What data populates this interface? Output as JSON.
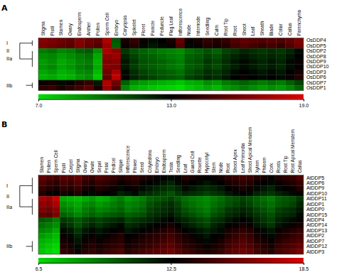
{
  "chart_data": [
    {
      "type": "heatmap",
      "title": "A",
      "x": [
        "Stigma",
        "Pistil",
        "Stamen",
        "Ovary",
        "Endosperm",
        "Anther",
        "Pollen",
        "Sperm Cell",
        "Embryo",
        "Caryopsis",
        "Spikelet",
        "Floret",
        "Panicle",
        "Peduncle",
        "Flag Leaf",
        "Inflorescence",
        "Node",
        "Internode",
        "Seedling",
        "Culm",
        "Root Tip",
        "Root",
        "Shoot",
        "Leaf",
        "Sheath",
        "Blade",
        "Collar",
        "Callus",
        "Parenchyma"
      ],
      "y": [
        "OsDDP4",
        "OsDDP5",
        "OsDDP2",
        "OsDDP8",
        "OsDDP9",
        "OsDDP10",
        "OsDDP3",
        "OsDDP6",
        "OsDDP7",
        "OsDDP1"
      ],
      "zlim": [
        0,
        1
      ],
      "colors": [
        "#00dd00",
        "#000000",
        "#dd0000"
      ],
      "colorbar": {
        "lim": [
          7.0,
          19.0
        ],
        "ticks": [
          {
            "value": 7.0,
            "label": "7.0"
          },
          {
            "value": 13.0,
            "label": "13.0"
          },
          {
            "value": 19.0,
            "label": "19.0"
          }
        ]
      },
      "clades": [
        {
          "text": "I",
          "rows": [
            "OsDDP4",
            "OsDDP5"
          ]
        },
        {
          "text": "IIa",
          "rows": [
            "OsDDP2",
            "OsDDP10"
          ]
        },
        {
          "text": "II",
          "joins": [
            "I",
            "IIa"
          ]
        },
        {
          "text": "IIb",
          "rows": [
            "OsDDP7",
            "OsDDP1"
          ]
        }
      ],
      "values": [
        [
          0.8,
          0.78,
          0.75,
          0.72,
          0.8,
          0.75,
          0.72,
          0.9,
          0.3,
          0.55,
          0.62,
          0.52,
          0.48,
          0.5,
          0.55,
          0.72,
          0.52,
          0.55,
          0.62,
          0.58,
          0.62,
          0.68,
          0.72,
          0.7,
          0.68,
          0.7,
          0.68,
          0.72,
          0.78
        ],
        [
          0.78,
          0.75,
          0.72,
          0.7,
          0.78,
          0.72,
          0.68,
          0.85,
          0.28,
          0.52,
          0.58,
          0.48,
          0.45,
          0.48,
          0.52,
          0.68,
          0.48,
          0.52,
          0.58,
          0.55,
          0.58,
          0.65,
          0.68,
          0.65,
          0.62,
          0.65,
          0.62,
          0.68,
          0.75
        ],
        [
          0.22,
          0.25,
          0.2,
          0.22,
          0.28,
          0.3,
          0.18,
          0.88,
          0.82,
          0.38,
          0.32,
          0.28,
          0.25,
          0.22,
          0.2,
          0.18,
          0.25,
          0.28,
          0.32,
          0.28,
          0.35,
          0.38,
          0.42,
          0.4,
          0.38,
          0.4,
          0.38,
          0.42,
          0.48
        ],
        [
          0.18,
          0.2,
          0.15,
          0.18,
          0.22,
          0.25,
          0.12,
          0.82,
          0.85,
          0.42,
          0.35,
          0.3,
          0.28,
          0.25,
          0.22,
          0.2,
          0.28,
          0.3,
          0.35,
          0.32,
          0.38,
          0.42,
          0.45,
          0.42,
          0.4,
          0.42,
          0.4,
          0.45,
          0.5
        ],
        [
          0.15,
          0.18,
          0.12,
          0.15,
          0.2,
          0.22,
          0.1,
          0.78,
          0.8,
          0.45,
          0.38,
          0.32,
          0.3,
          0.28,
          0.25,
          0.22,
          0.3,
          0.32,
          0.38,
          0.35,
          0.4,
          0.45,
          0.48,
          0.45,
          0.42,
          0.45,
          0.42,
          0.48,
          0.52
        ],
        [
          0.16,
          0.19,
          0.13,
          0.16,
          0.21,
          0.24,
          0.11,
          0.8,
          0.78,
          0.44,
          0.36,
          0.31,
          0.29,
          0.26,
          0.23,
          0.21,
          0.29,
          0.31,
          0.36,
          0.33,
          0.39,
          0.43,
          0.47,
          0.44,
          0.41,
          0.44,
          0.41,
          0.47,
          0.51
        ],
        [
          0.12,
          0.15,
          0.1,
          0.12,
          0.18,
          0.2,
          0.08,
          0.75,
          0.88,
          0.48,
          0.4,
          0.35,
          0.32,
          0.3,
          0.28,
          0.25,
          0.32,
          0.35,
          0.4,
          0.38,
          0.42,
          0.48,
          0.5,
          0.48,
          0.45,
          0.48,
          0.45,
          0.5,
          0.55
        ],
        [
          0.1,
          0.12,
          0.08,
          0.1,
          0.15,
          0.18,
          0.05,
          0.72,
          0.92,
          0.52,
          0.42,
          0.38,
          0.35,
          0.32,
          0.3,
          0.28,
          0.35,
          0.38,
          0.42,
          0.4,
          0.45,
          0.5,
          0.52,
          0.5,
          0.48,
          0.5,
          0.48,
          0.52,
          0.58
        ],
        [
          0.52,
          0.55,
          0.48,
          0.52,
          0.58,
          0.62,
          0.45,
          0.9,
          0.75,
          0.28,
          0.18,
          0.15,
          0.12,
          0.1,
          0.08,
          0.05,
          0.1,
          0.12,
          0.18,
          0.15,
          0.22,
          0.25,
          0.28,
          0.25,
          0.22,
          0.25,
          0.22,
          0.28,
          0.35
        ],
        [
          0.6,
          0.62,
          0.55,
          0.6,
          0.65,
          0.7,
          0.55,
          0.85,
          0.68,
          0.2,
          0.1,
          0.08,
          0.05,
          0.03,
          0.02,
          0.0,
          0.05,
          0.08,
          0.12,
          0.08,
          0.15,
          0.18,
          0.22,
          0.18,
          0.15,
          0.18,
          0.15,
          0.2,
          0.28
        ]
      ]
    },
    {
      "type": "heatmap",
      "title": "B",
      "x": [
        "Stamen",
        "Pollen",
        "Sperm Cell",
        "Pistil",
        "Carpel",
        "Stigma",
        "Ovary",
        "Ovule",
        "Sepal",
        "Petal",
        "Pedicel",
        "Silique",
        "Inflorescence",
        "Flower",
        "Seed",
        "Cotyledons",
        "Embryo",
        "Endosperm",
        "Testa",
        "Seedling",
        "Leaf",
        "Guard Cell",
        "Rosette",
        "Hypocotyl",
        "Stem",
        "Node",
        "Root",
        "Shoot Apex",
        "Leaf Primordia",
        "Shoot Apical Meristem",
        "Xylem",
        "Phloem",
        "Cork",
        "Roots",
        "Root Tip",
        "Root Apical Meristem",
        "Callus"
      ],
      "y": [
        "AtDDP5",
        "AtDDP6",
        "AtDDP9",
        "AtDDP10",
        "AtDDP11",
        "AtDDP1",
        "AtDDP0",
        "AtDDP15",
        "AtDDP4",
        "AtDDP14",
        "AtDDP13",
        "AtDDP2",
        "AtDDP7",
        "AtDDP12",
        "AtDDP3"
      ],
      "zlim": [
        0,
        1
      ],
      "colors": [
        "#00dd00",
        "#000000",
        "#dd0000"
      ],
      "colorbar": {
        "lim": [
          6.5,
          18.5
        ],
        "ticks": [
          {
            "value": 6.5,
            "label": "6.5"
          },
          {
            "value": 12.5,
            "label": "12.5"
          },
          {
            "value": 18.5,
            "label": "18.5"
          }
        ]
      },
      "clades": [
        {
          "text": "I",
          "rows": [
            "AtDDP5",
            "AtDDP10"
          ]
        },
        {
          "text": "IIa",
          "rows": [
            "AtDDP11",
            "AtDDP15"
          ]
        },
        {
          "text": "II",
          "joins": [
            "I",
            "IIa"
          ]
        },
        {
          "text": "IIb",
          "rows": [
            "AtDDP7",
            "AtDDP3"
          ]
        }
      ],
      "values": [
        [
          0.72,
          0.68,
          0.65,
          0.7,
          0.68,
          0.72,
          0.65,
          0.62,
          0.68,
          0.65,
          0.62,
          0.58,
          0.6,
          0.62,
          0.58,
          0.55,
          0.52,
          0.5,
          0.48,
          0.52,
          0.58,
          0.55,
          0.52,
          0.5,
          0.52,
          0.55,
          0.6,
          0.62,
          0.65,
          0.62,
          0.58,
          0.55,
          0.52,
          0.58,
          0.6,
          0.62,
          0.68
        ],
        [
          0.68,
          0.62,
          0.6,
          0.65,
          0.62,
          0.68,
          0.6,
          0.58,
          0.62,
          0.6,
          0.58,
          0.52,
          0.55,
          0.58,
          0.52,
          0.5,
          0.48,
          0.45,
          0.42,
          0.48,
          0.52,
          0.5,
          0.48,
          0.45,
          0.48,
          0.5,
          0.55,
          0.58,
          0.6,
          0.58,
          0.52,
          0.5,
          0.48,
          0.52,
          0.55,
          0.58,
          0.62
        ],
        [
          0.62,
          0.58,
          0.55,
          0.6,
          0.58,
          0.62,
          0.55,
          0.52,
          0.58,
          0.55,
          0.52,
          0.48,
          0.5,
          0.52,
          0.48,
          0.45,
          0.42,
          0.4,
          0.38,
          0.42,
          0.48,
          0.45,
          0.42,
          0.4,
          0.42,
          0.45,
          0.5,
          0.52,
          0.55,
          0.52,
          0.48,
          0.45,
          0.42,
          0.48,
          0.5,
          0.52,
          0.58
        ],
        [
          0.58,
          0.52,
          0.5,
          0.55,
          0.52,
          0.58,
          0.5,
          0.48,
          0.52,
          0.5,
          0.48,
          0.42,
          0.45,
          0.48,
          0.42,
          0.4,
          0.38,
          0.35,
          0.32,
          0.38,
          0.42,
          0.4,
          0.38,
          0.35,
          0.38,
          0.4,
          0.45,
          0.48,
          0.5,
          0.48,
          0.42,
          0.4,
          0.38,
          0.42,
          0.45,
          0.48,
          0.52
        ],
        [
          0.88,
          0.85,
          0.95,
          0.12,
          0.1,
          0.08,
          0.12,
          0.15,
          0.1,
          0.12,
          0.18,
          0.22,
          0.15,
          0.18,
          0.22,
          0.28,
          0.3,
          0.32,
          0.35,
          0.3,
          0.25,
          0.22,
          0.2,
          0.18,
          0.22,
          0.25,
          0.3,
          0.32,
          0.35,
          0.32,
          0.28,
          0.25,
          0.22,
          0.28,
          0.3,
          0.32,
          0.38
        ],
        [
          0.82,
          0.8,
          0.88,
          0.18,
          0.15,
          0.12,
          0.18,
          0.2,
          0.15,
          0.18,
          0.22,
          0.25,
          0.2,
          0.22,
          0.25,
          0.32,
          0.35,
          0.38,
          0.4,
          0.35,
          0.28,
          0.25,
          0.22,
          0.2,
          0.25,
          0.28,
          0.32,
          0.35,
          0.38,
          0.35,
          0.3,
          0.28,
          0.25,
          0.3,
          0.32,
          0.35,
          0.42
        ],
        [
          0.78,
          0.75,
          0.82,
          0.22,
          0.2,
          0.15,
          0.22,
          0.25,
          0.2,
          0.22,
          0.25,
          0.28,
          0.22,
          0.25,
          0.28,
          0.35,
          0.38,
          0.4,
          0.42,
          0.38,
          0.32,
          0.28,
          0.25,
          0.22,
          0.28,
          0.32,
          0.38,
          0.4,
          0.42,
          0.4,
          0.35,
          0.32,
          0.28,
          0.35,
          0.38,
          0.4,
          0.45
        ],
        [
          0.72,
          0.7,
          0.78,
          0.28,
          0.25,
          0.2,
          0.25,
          0.28,
          0.25,
          0.28,
          0.3,
          0.32,
          0.28,
          0.3,
          0.32,
          0.38,
          0.4,
          0.42,
          0.45,
          0.4,
          0.35,
          0.32,
          0.28,
          0.25,
          0.32,
          0.35,
          0.4,
          0.42,
          0.45,
          0.42,
          0.38,
          0.35,
          0.32,
          0.38,
          0.4,
          0.42,
          0.48
        ],
        [
          0.3,
          0.28,
          0.22,
          0.38,
          0.35,
          0.3,
          0.35,
          0.38,
          0.35,
          0.38,
          0.4,
          0.42,
          0.35,
          0.38,
          0.4,
          0.42,
          0.45,
          0.48,
          0.5,
          0.45,
          0.42,
          0.38,
          0.35,
          0.32,
          0.38,
          0.4,
          0.45,
          0.48,
          0.5,
          0.48,
          0.42,
          0.38,
          0.35,
          0.42,
          0.45,
          0.48,
          0.52
        ],
        [
          0.25,
          0.22,
          0.18,
          0.42,
          0.38,
          0.32,
          0.38,
          0.42,
          0.38,
          0.42,
          0.45,
          0.48,
          0.4,
          0.42,
          0.45,
          0.48,
          0.5,
          0.52,
          0.55,
          0.5,
          0.45,
          0.42,
          0.38,
          0.35,
          0.42,
          0.45,
          0.5,
          0.52,
          0.55,
          0.52,
          0.45,
          0.42,
          0.38,
          0.45,
          0.48,
          0.52,
          0.55
        ],
        [
          0.2,
          0.18,
          0.12,
          0.48,
          0.45,
          0.38,
          0.45,
          0.48,
          0.45,
          0.48,
          0.5,
          0.52,
          0.45,
          0.48,
          0.5,
          0.52,
          0.55,
          0.58,
          0.6,
          0.55,
          0.5,
          0.48,
          0.45,
          0.42,
          0.45,
          0.48,
          0.55,
          0.58,
          0.6,
          0.58,
          0.52,
          0.48,
          0.45,
          0.52,
          0.55,
          0.58,
          0.62
        ],
        [
          0.15,
          0.12,
          0.08,
          0.52,
          0.48,
          0.42,
          0.48,
          0.52,
          0.48,
          0.52,
          0.55,
          0.58,
          0.5,
          0.52,
          0.55,
          0.58,
          0.6,
          0.62,
          0.65,
          0.6,
          0.55,
          0.52,
          0.48,
          0.45,
          0.5,
          0.52,
          0.58,
          0.62,
          0.65,
          0.62,
          0.55,
          0.52,
          0.48,
          0.55,
          0.58,
          0.62,
          0.65
        ],
        [
          0.1,
          0.08,
          0.05,
          0.55,
          0.52,
          0.45,
          0.52,
          0.55,
          0.52,
          0.55,
          0.58,
          0.6,
          0.52,
          0.55,
          0.58,
          0.6,
          0.62,
          0.65,
          0.68,
          0.62,
          0.58,
          0.55,
          0.52,
          0.48,
          0.52,
          0.55,
          0.62,
          0.65,
          0.68,
          0.65,
          0.58,
          0.55,
          0.52,
          0.58,
          0.62,
          0.65,
          0.68
        ],
        [
          0.08,
          0.05,
          0.02,
          0.58,
          0.55,
          0.48,
          0.55,
          0.58,
          0.55,
          0.58,
          0.6,
          0.62,
          0.55,
          0.58,
          0.6,
          0.62,
          0.65,
          0.68,
          0.7,
          0.65,
          0.6,
          0.58,
          0.55,
          0.52,
          0.55,
          0.58,
          0.65,
          0.68,
          0.7,
          0.68,
          0.62,
          0.58,
          0.55,
          0.62,
          0.65,
          0.68,
          0.72
        ],
        [
          0.05,
          0.02,
          0.0,
          0.62,
          0.58,
          0.52,
          0.58,
          0.62,
          0.58,
          0.62,
          0.65,
          0.68,
          0.58,
          0.62,
          0.65,
          0.68,
          0.7,
          0.72,
          0.75,
          0.7,
          0.65,
          0.62,
          0.58,
          0.55,
          0.58,
          0.62,
          0.68,
          0.72,
          0.75,
          0.72,
          0.65,
          0.62,
          0.58,
          0.65,
          0.68,
          0.72,
          0.78
        ]
      ]
    }
  ]
}
